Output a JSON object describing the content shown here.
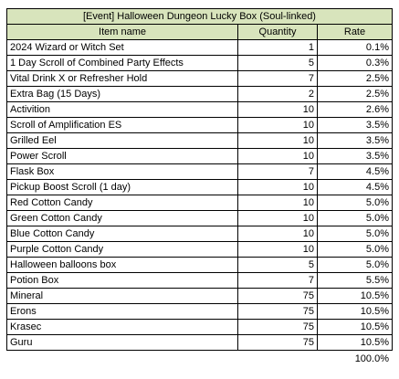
{
  "table": {
    "title": "[Event] Halloween Dungeon Lucky Box (Soul-linked)",
    "header": [
      "Item name",
      "Quantity",
      "Rate"
    ],
    "rows": [
      [
        "2024 Wizard or Witch Set",
        "1",
        "0.1%"
      ],
      [
        "1 Day Scroll of Combined Party Effects",
        "5",
        "0.3%"
      ],
      [
        "Vital Drink X or Refresher Hold",
        "7",
        "2.5%"
      ],
      [
        "Extra Bag (15 Days)",
        "2",
        "2.5%"
      ],
      [
        "Activition",
        "10",
        "2.6%"
      ],
      [
        "Scroll of Amplification ES",
        "10",
        "3.5%"
      ],
      [
        "Grilled Eel",
        "10",
        "3.5%"
      ],
      [
        "Power Scroll",
        "10",
        "3.5%"
      ],
      [
        "Flask Box",
        "7",
        "4.5%"
      ],
      [
        "Pickup Boost Scroll (1 day)",
        "10",
        "4.5%"
      ],
      [
        "Red Cotton Candy",
        "10",
        "5.0%"
      ],
      [
        "Green Cotton Candy",
        "10",
        "5.0%"
      ],
      [
        "Blue Cotton Candy",
        "10",
        "5.0%"
      ],
      [
        "Purple Cotton Candy",
        "10",
        "5.0%"
      ],
      [
        "Halloween balloons box",
        "5",
        "5.0%"
      ],
      [
        "Potion Box",
        "7",
        "5.5%"
      ],
      [
        "Mineral",
        "75",
        "10.5%"
      ],
      [
        "Erons",
        "75",
        "10.5%"
      ],
      [
        "Krasec",
        "75",
        "10.5%"
      ],
      [
        "Guru",
        "75",
        "10.5%"
      ]
    ],
    "total": "100.0%"
  }
}
